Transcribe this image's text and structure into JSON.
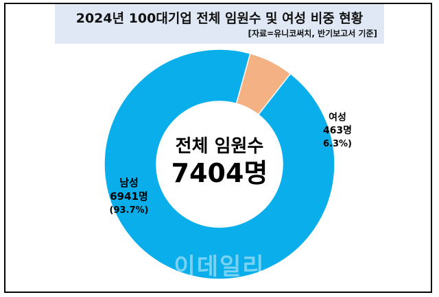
{
  "chart_data": {
    "type": "pie",
    "title": "2024년 100대기업 전체 임원수 및 여성 비중 현황",
    "source": "[자료=유니코써치, 반기보고서 기준]",
    "center_label": "전체 임원수",
    "center_total": "7404명",
    "slices": [
      {
        "name": "남성",
        "value": 6941,
        "value_label": "6941명",
        "percent_label": "(93.7%)",
        "color": "#0aaeea"
      },
      {
        "name": "여성",
        "value": 463,
        "value_label": "463명",
        "percent_label": "6.3%)",
        "color": "#f4b183"
      }
    ]
  },
  "watermark": "이데일리"
}
